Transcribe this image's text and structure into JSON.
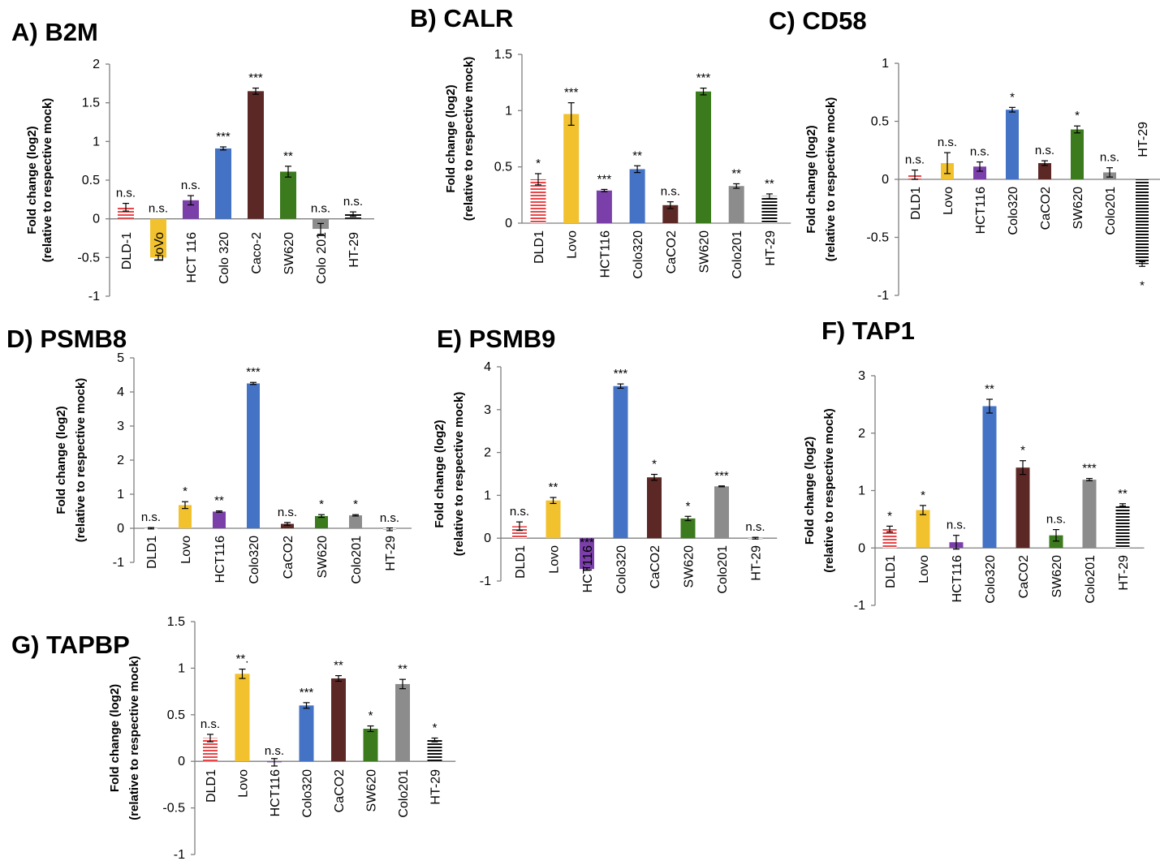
{
  "colors": {
    "DLD1": "#e8474a",
    "Lovo": "#f2c12e",
    "HCT116": "#7a3fa8",
    "Colo320": "#4472c4",
    "CaCO2": "#5c2826",
    "SW620": "#3c7a1e",
    "Colo201": "#8c8c8c",
    "HT-29": "#111111"
  },
  "chart_data": [
    {
      "type": "bar",
      "title": "A) B2M",
      "ylabel": [
        "Fold change (log2)",
        "(relative to respective mock)"
      ],
      "ylim": [
        -1,
        2
      ],
      "yticks": [
        -1,
        -0.5,
        0,
        0.5,
        1,
        1.5,
        2
      ],
      "categories": [
        "DLD-1",
        "LoVo",
        "HCT 116",
        "Colo 320",
        "Caco-2",
        "SW620",
        "Colo 201",
        "HT-29"
      ],
      "values": [
        0.15,
        -0.5,
        0.24,
        0.91,
        1.65,
        0.61,
        -0.13,
        0.06
      ],
      "errors": [
        0.05,
        0.03,
        0.06,
        0.02,
        0.04,
        0.07,
        0.07,
        0.03
      ],
      "significance": [
        "n.s.",
        "n.s.",
        "n.s.",
        "***",
        "***",
        "**",
        "n.s.",
        "n.s."
      ]
    },
    {
      "type": "bar",
      "title": "B) CALR",
      "ylabel": [
        "Fold change (log2)",
        "(relative to respective mock)"
      ],
      "ylim": [
        0,
        1.5
      ],
      "yticks": [
        0,
        0.5,
        1,
        1.5
      ],
      "categories": [
        "DLD1",
        "Lovo",
        "HCT116",
        "Colo320",
        "CaCO2",
        "SW620",
        "Colo201",
        "HT-29"
      ],
      "values": [
        0.39,
        0.97,
        0.29,
        0.48,
        0.16,
        1.17,
        0.33,
        0.24
      ],
      "errors": [
        0.05,
        0.1,
        0.01,
        0.03,
        0.03,
        0.03,
        0.02,
        0.02
      ],
      "significance": [
        "*",
        "***",
        "***",
        "**",
        "n.s.",
        "***",
        "**",
        "**"
      ]
    },
    {
      "type": "bar",
      "title": "C) CD58",
      "ylabel": [
        "Fold change (log2)",
        "(relative to respective mock)"
      ],
      "ylim": [
        -1,
        1
      ],
      "yticks": [
        -1,
        -0.5,
        0,
        0.5,
        1
      ],
      "categories": [
        "DLD1",
        "Lovo",
        "HCT116",
        "Colo320",
        "CaCO2",
        "SW620",
        "Colo201",
        "HT-29"
      ],
      "values": [
        0.04,
        0.14,
        0.11,
        0.6,
        0.14,
        0.43,
        0.06,
        -0.73
      ],
      "errors": [
        0.04,
        0.09,
        0.04,
        0.02,
        0.02,
        0.03,
        0.04,
        0.02
      ],
      "significance": [
        "n.s.",
        "n.s.",
        "n.s.",
        "*",
        "n.s.",
        "*",
        "n.s.",
        "*"
      ]
    },
    {
      "type": "bar",
      "title": "D) PSMB8",
      "ylabel": [
        "Fold change (log2)",
        "(relative to respective mock)"
      ],
      "ylim": [
        -1,
        5
      ],
      "yticks": [
        -1,
        0,
        1,
        2,
        3,
        4,
        5
      ],
      "categories": [
        "DLD1",
        "Lovo",
        "HCT116",
        "Colo320",
        "CaCO2",
        "SW620",
        "Colo201",
        "HT-29"
      ],
      "values": [
        0.0,
        0.68,
        0.49,
        4.25,
        0.13,
        0.36,
        0.38,
        -0.03
      ],
      "errors": [
        0.02,
        0.1,
        0.02,
        0.03,
        0.04,
        0.04,
        0.02,
        0.04
      ],
      "significance": [
        "n.s.",
        "*",
        "**",
        "***",
        "n.s.",
        "*",
        "*",
        "n.s."
      ]
    },
    {
      "type": "bar",
      "title": "E) PSMB9",
      "ylabel": [
        "Fold change (log2)",
        "(relative to respective mock)"
      ],
      "ylim": [
        -1,
        4
      ],
      "yticks": [
        -1,
        0,
        1,
        2,
        3,
        4
      ],
      "categories": [
        "DLD1",
        "Lovo",
        "HCT116",
        "Colo320",
        "CaCO2",
        "SW620",
        "Colo201",
        "HT-29"
      ],
      "values": [
        0.28,
        0.88,
        -0.72,
        3.55,
        1.42,
        0.46,
        1.21,
        0.0
      ],
      "errors": [
        0.1,
        0.07,
        0.03,
        0.05,
        0.07,
        0.05,
        0.01,
        0.02
      ],
      "significance": [
        "n.s.",
        "**",
        "***",
        "***",
        "*",
        "*",
        "***",
        "n.s."
      ]
    },
    {
      "type": "bar",
      "title": "F) TAP1",
      "ylabel": [
        "Fold change (log2)",
        "(relative to respective mock)"
      ],
      "ylim": [
        -1,
        3
      ],
      "yticks": [
        -1,
        0,
        1,
        2,
        3
      ],
      "categories": [
        "DLD1",
        "Lovo",
        "HCT116",
        "Colo320",
        "CaCO2",
        "SW620",
        "Colo201",
        "HT-29"
      ],
      "values": [
        0.33,
        0.66,
        0.1,
        2.47,
        1.4,
        0.22,
        1.19,
        0.75
      ],
      "errors": [
        0.05,
        0.08,
        0.12,
        0.12,
        0.12,
        0.1,
        0.02,
        0.02
      ],
      "significance": [
        "*",
        "*",
        "n.s.",
        "**",
        "*",
        "n.s.",
        "***",
        "**"
      ]
    },
    {
      "type": "bar",
      "title": "G) TAPBP",
      "ylabel": [
        "Fold change (log2)",
        "(relative to respective mock)"
      ],
      "ylim": [
        -1,
        1.5
      ],
      "yticks": [
        -1,
        -0.5,
        0,
        0.5,
        1,
        1.5
      ],
      "categories": [
        "DLD1",
        "Lovo",
        "HCT116",
        "Colo320",
        "CaCO2",
        "SW620",
        "Colo201",
        "HT-29"
      ],
      "values": [
        0.25,
        0.94,
        -0.01,
        0.6,
        0.89,
        0.35,
        0.83,
        0.23
      ],
      "errors": [
        0.04,
        0.05,
        0.04,
        0.03,
        0.03,
        0.03,
        0.05,
        0.02
      ],
      "significance": [
        "n.s.",
        "**.",
        "n.s.",
        "***",
        "**",
        "*",
        "**",
        "*"
      ]
    }
  ]
}
